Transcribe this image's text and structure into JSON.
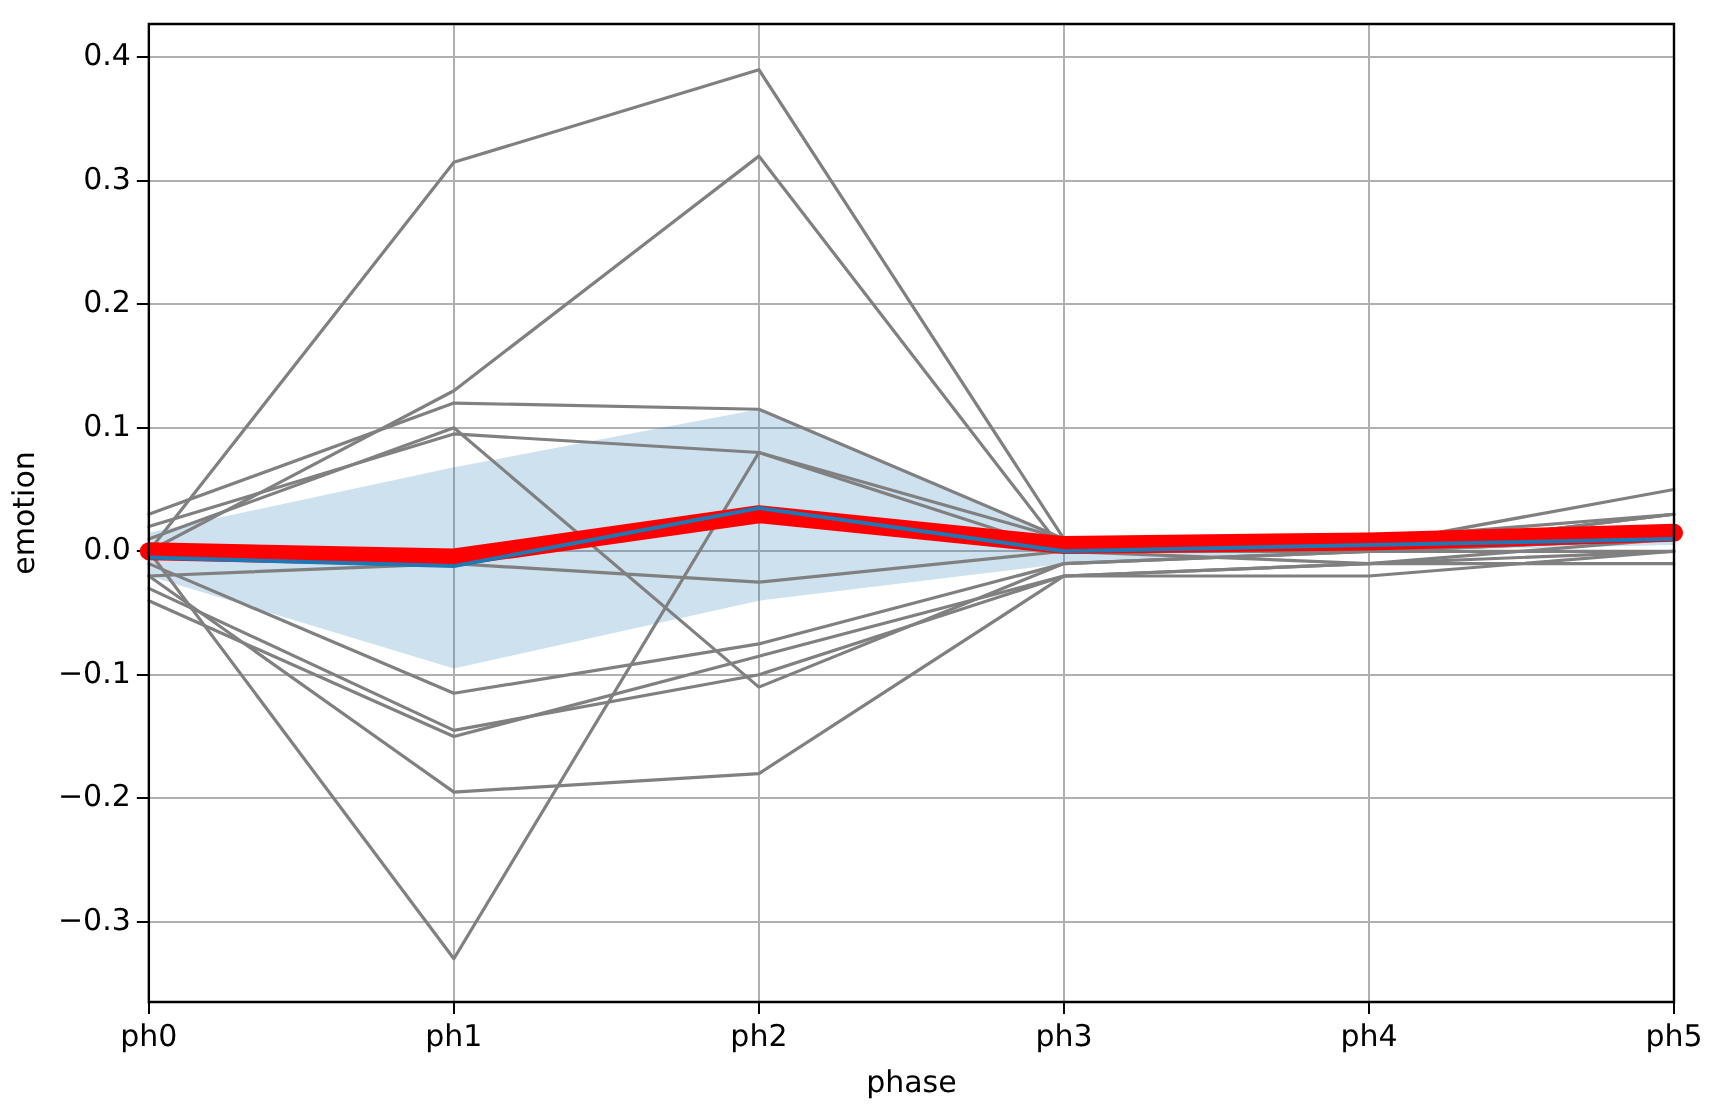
{
  "chart_data": {
    "type": "line",
    "xlabel": "phase",
    "ylabel": "emotion",
    "categories": [
      "ph0",
      "ph1",
      "ph2",
      "ph3",
      "ph4",
      "ph5"
    ],
    "ylim": [
      -0.365,
      0.427
    ],
    "yticks": [
      {
        "value": -0.3,
        "label": "−0.3"
      },
      {
        "value": -0.2,
        "label": "−0.2"
      },
      {
        "value": -0.1,
        "label": "−0.1"
      },
      {
        "value": 0,
        "label": "0.0"
      },
      0.1,
      0.2,
      0.3,
      0.4
    ],
    "grid": true,
    "legend": false,
    "marker": "none",
    "line_style": "solid",
    "series": [
      {
        "color": "#808080",
        "values": [
          0.0,
          0.315,
          0.39,
          0.01,
          0.0,
          0.03
        ]
      },
      {
        "color": "#808080",
        "values": [
          0.0,
          0.13,
          0.32,
          0.0,
          -0.01,
          0.01
        ]
      },
      {
        "color": "#808080",
        "values": [
          0.03,
          0.12,
          0.115,
          0.01,
          0.005,
          0.05
        ]
      },
      {
        "color": "#808080",
        "values": [
          0.02,
          0.095,
          0.08,
          0.01,
          0.01,
          0.03
        ]
      },
      {
        "color": "#808080",
        "values": [
          0.01,
          0.1,
          -0.11,
          -0.01,
          0.0,
          0.0
        ]
      },
      {
        "color": "#808080",
        "values": [
          -0.02,
          -0.195,
          -0.18,
          -0.02,
          -0.02,
          0.0
        ]
      },
      {
        "color": "#808080",
        "values": [
          0.0,
          -0.33,
          0.08,
          0.0,
          0.0,
          0.01
        ]
      },
      {
        "color": "#808080",
        "values": [
          -0.03,
          -0.145,
          -0.1,
          -0.02,
          -0.01,
          -0.01
        ]
      },
      {
        "color": "#808080",
        "values": [
          -0.04,
          -0.15,
          -0.085,
          -0.02,
          -0.01,
          0.0
        ]
      },
      {
        "color": "#808080",
        "values": [
          -0.01,
          -0.115,
          -0.075,
          -0.01,
          0.0,
          0.03
        ]
      },
      {
        "color": "#808080",
        "values": [
          -0.02,
          -0.01,
          -0.025,
          0.0,
          0.0,
          0.01
        ]
      },
      {
        "color": "#ff0000",
        "values": [
          0.0,
          -0.005,
          0.03,
          0.005,
          0.008,
          0.015
        ]
      },
      {
        "color": "#1f77b4",
        "values": [
          -0.005,
          -0.012,
          0.035,
          0.0,
          0.005,
          0.01
        ],
        "lower": [
          -0.02,
          -0.095,
          -0.04,
          -0.01,
          0.0,
          0.005
        ],
        "upper": [
          0.015,
          0.068,
          0.115,
          0.01,
          0.01,
          0.02
        ]
      }
    ]
  }
}
